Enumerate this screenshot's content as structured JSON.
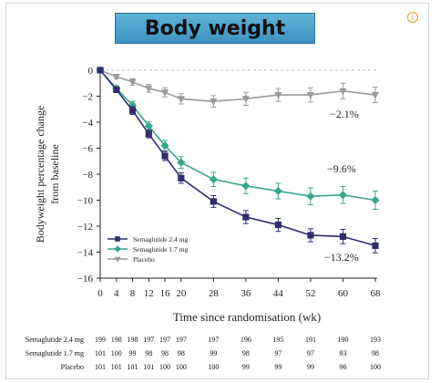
{
  "title": "Body weight",
  "info_icon": "info-icon",
  "chart_data": {
    "type": "line",
    "ylabel": "Bodyweight percentage change from baseline",
    "xlabel": "Time since randomisation (wk)",
    "x": [
      0,
      4,
      8,
      12,
      16,
      20,
      28,
      36,
      44,
      52,
      60,
      68
    ],
    "xticks": [
      "0",
      "4",
      "8",
      "12",
      "16",
      "20",
      "28",
      "36",
      "44",
      "52",
      "60",
      "68"
    ],
    "ylim": [
      -16,
      0
    ],
    "yticks": [
      "0",
      "−2",
      "−4",
      "−6",
      "−8",
      "−10",
      "−12",
      "−14",
      "−16"
    ],
    "series": [
      {
        "name": "Semaglutide 2.4 mg",
        "color": "#2e2e6e",
        "marker": "square",
        "values": [
          0,
          -1.5,
          -3.1,
          -4.9,
          -6.6,
          -8.3,
          -10.1,
          -11.3,
          -11.9,
          -12.7,
          -12.8,
          -13.5
        ],
        "errors": [
          0,
          0.2,
          0.3,
          0.3,
          0.35,
          0.4,
          0.45,
          0.5,
          0.5,
          0.5,
          0.55,
          0.55
        ],
        "annotation": "−13.2%"
      },
      {
        "name": "Semaglutide 1.7 mg",
        "color": "#3aa58e",
        "marker": "diamond",
        "values": [
          0,
          -1.4,
          -2.7,
          -4.3,
          -5.8,
          -7.1,
          -8.4,
          -8.9,
          -9.3,
          -9.7,
          -9.6,
          -10.0
        ],
        "errors": [
          0,
          0.2,
          0.3,
          0.35,
          0.4,
          0.45,
          0.55,
          0.6,
          0.6,
          0.65,
          0.65,
          0.7
        ],
        "annotation": "−9.6%"
      },
      {
        "name": "Placebo",
        "color": "#9a9a9a",
        "marker": "triangle-down",
        "values": [
          0,
          -0.5,
          -0.9,
          -1.4,
          -1.7,
          -2.2,
          -2.4,
          -2.2,
          -1.9,
          -1.9,
          -1.6,
          -1.9
        ],
        "errors": [
          0,
          0.15,
          0.25,
          0.3,
          0.35,
          0.4,
          0.45,
          0.5,
          0.5,
          0.55,
          0.6,
          0.6
        ],
        "annotation": "−2.1%"
      }
    ],
    "legend": {
      "placement": "bottom-left",
      "entries": [
        "Semaglutide 2.4 mg",
        "Semaglutide 1.7 mg",
        "Placebo"
      ]
    },
    "at_risk": {
      "x": [
        0,
        4,
        8,
        12,
        16,
        20,
        28,
        36,
        44,
        52,
        60,
        68
      ],
      "rows": [
        {
          "label": "Semaglutide 2.4 mg",
          "values": [
            "199",
            "198",
            "198",
            "197",
            "197",
            "197",
            "197",
            "196",
            "195",
            "191",
            "190",
            "193"
          ]
        },
        {
          "label": "Semaglutide 1.7 mg",
          "values": [
            "101",
            "100",
            "99",
            "98",
            "98",
            "98",
            "99",
            "98",
            "97",
            "97",
            "93",
            "98"
          ]
        },
        {
          "label": "Placebo",
          "values": [
            "101",
            "101",
            "101",
            "101",
            "100",
            "100",
            "100",
            "99",
            "99",
            "99",
            "96",
            "100"
          ]
        }
      ]
    }
  }
}
